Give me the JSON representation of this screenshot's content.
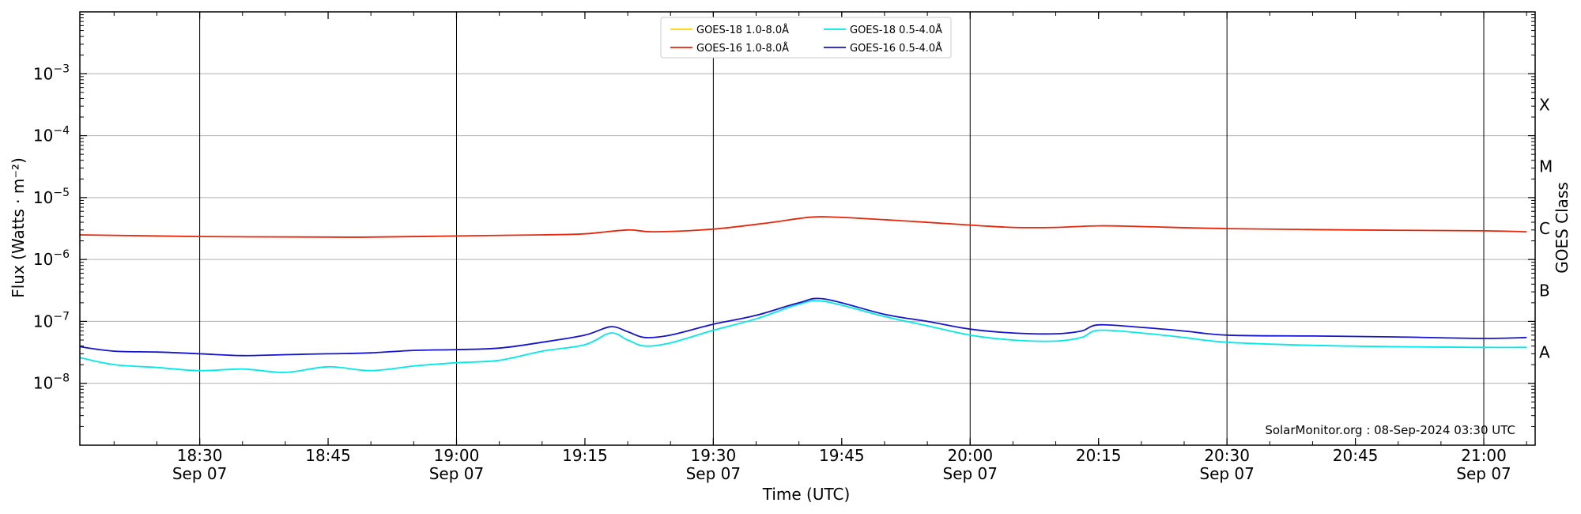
{
  "chart_data": {
    "type": "line",
    "title": "",
    "xlabel": "Time (UTC)",
    "ylabel": "Flux (Watts · m⁻²)",
    "y2label": "GOES Class",
    "yscale": "log",
    "ylim": [
      1e-09,
      0.01
    ],
    "xlim": [
      "18:16",
      "21:06"
    ],
    "grid": "horizontal at decades; vertical at half hours",
    "legend_position": "top-center",
    "x_ticks": [
      {
        "time": "18:30",
        "label": "18:30",
        "date": "Sep 07"
      },
      {
        "time": "18:45",
        "label": "18:45",
        "date": ""
      },
      {
        "time": "19:00",
        "label": "19:00",
        "date": "Sep 07"
      },
      {
        "time": "19:15",
        "label": "19:15",
        "date": ""
      },
      {
        "time": "19:30",
        "label": "19:30",
        "date": "Sep 07"
      },
      {
        "time": "19:45",
        "label": "19:45",
        "date": ""
      },
      {
        "time": "20:00",
        "label": "20:00",
        "date": "Sep 07"
      },
      {
        "time": "20:15",
        "label": "20:15",
        "date": ""
      },
      {
        "time": "20:30",
        "label": "20:30",
        "date": "Sep 07"
      },
      {
        "time": "20:45",
        "label": "20:45",
        "date": ""
      },
      {
        "time": "21:00",
        "label": "21:00",
        "date": "Sep 07"
      }
    ],
    "y_ticks": [
      {
        "value": 1e-08,
        "base": "10",
        "exp": "−8"
      },
      {
        "value": 1e-07,
        "base": "10",
        "exp": "−7"
      },
      {
        "value": 1e-06,
        "base": "10",
        "exp": "−6"
      },
      {
        "value": 1e-05,
        "base": "10",
        "exp": "−5"
      },
      {
        "value": 0.0001,
        "base": "10",
        "exp": "−4"
      },
      {
        "value": 0.001,
        "base": "10",
        "exp": "−3"
      }
    ],
    "goes_classes": [
      {
        "label": "A",
        "value": 3.16e-08
      },
      {
        "label": "B",
        "value": 3.16e-07
      },
      {
        "label": "C",
        "value": 3.16e-06
      },
      {
        "label": "M",
        "value": 3.16e-05
      },
      {
        "label": "X",
        "value": 0.000316
      }
    ],
    "series": [
      {
        "name": "GOES-18 1.0-8.0Å",
        "color": "#ffd700",
        "points": []
      },
      {
        "name": "GOES-16 1.0-8.0Å",
        "color": "#e8260a",
        "points": [
          [
            "18:16",
            2.5e-06
          ],
          [
            "18:30",
            2.35e-06
          ],
          [
            "18:45",
            2.3e-06
          ],
          [
            "18:50",
            2.3e-06
          ],
          [
            "19:00",
            2.4e-06
          ],
          [
            "19:10",
            2.5e-06
          ],
          [
            "19:15",
            2.6e-06
          ],
          [
            "19:20",
            3e-06
          ],
          [
            "19:23",
            2.8e-06
          ],
          [
            "19:30",
            3.1e-06
          ],
          [
            "19:37",
            4e-06
          ],
          [
            "19:40",
            4.6e-06
          ],
          [
            "19:43",
            4.9e-06
          ],
          [
            "19:50",
            4.4e-06
          ],
          [
            "20:00",
            3.6e-06
          ],
          [
            "20:05",
            3.3e-06
          ],
          [
            "20:10",
            3.3e-06
          ],
          [
            "20:15",
            3.5e-06
          ],
          [
            "20:20",
            3.4e-06
          ],
          [
            "20:30",
            3.15e-06
          ],
          [
            "20:45",
            3e-06
          ],
          [
            "21:00",
            2.9e-06
          ],
          [
            "21:05",
            2.8e-06
          ]
        ]
      },
      {
        "name": "GOES-18 0.5-4.0Å",
        "color": "#00eaea",
        "points": [
          [
            "18:16",
            2.6e-08
          ],
          [
            "18:20",
            2e-08
          ],
          [
            "18:25",
            1.8e-08
          ],
          [
            "18:30",
            1.6e-08
          ],
          [
            "18:35",
            1.7e-08
          ],
          [
            "18:40",
            1.5e-08
          ],
          [
            "18:45",
            1.85e-08
          ],
          [
            "18:50",
            1.6e-08
          ],
          [
            "18:55",
            1.9e-08
          ],
          [
            "19:00",
            2.15e-08
          ],
          [
            "19:05",
            2.35e-08
          ],
          [
            "19:10",
            3.3e-08
          ],
          [
            "19:15",
            4.2e-08
          ],
          [
            "19:18",
            6.5e-08
          ],
          [
            "19:20",
            5e-08
          ],
          [
            "19:22",
            4e-08
          ],
          [
            "19:25",
            4.5e-08
          ],
          [
            "19:30",
            7.2e-08
          ],
          [
            "19:35",
            1.1e-07
          ],
          [
            "19:40",
            1.9e-07
          ],
          [
            "19:43",
            2.1e-07
          ],
          [
            "19:50",
            1.2e-07
          ],
          [
            "19:55",
            8.5e-08
          ],
          [
            "20:00",
            6e-08
          ],
          [
            "20:05",
            5e-08
          ],
          [
            "20:10",
            4.8e-08
          ],
          [
            "20:13",
            5.5e-08
          ],
          [
            "20:15",
            7.2e-08
          ],
          [
            "20:20",
            6.5e-08
          ],
          [
            "20:25",
            5.5e-08
          ],
          [
            "20:30",
            4.6e-08
          ],
          [
            "20:40",
            4.1e-08
          ],
          [
            "20:50",
            3.9e-08
          ],
          [
            "21:00",
            3.8e-08
          ],
          [
            "21:05",
            3.8e-08
          ]
        ]
      },
      {
        "name": "GOES-16 0.5-4.0Å",
        "color": "#1414d2",
        "points": [
          [
            "18:16",
            3.9e-08
          ],
          [
            "18:20",
            3.3e-08
          ],
          [
            "18:25",
            3.2e-08
          ],
          [
            "18:30",
            3e-08
          ],
          [
            "18:35",
            2.8e-08
          ],
          [
            "18:40",
            2.9e-08
          ],
          [
            "18:45",
            3e-08
          ],
          [
            "18:50",
            3.1e-08
          ],
          [
            "18:55",
            3.4e-08
          ],
          [
            "19:00",
            3.5e-08
          ],
          [
            "19:05",
            3.7e-08
          ],
          [
            "19:10",
            4.6e-08
          ],
          [
            "19:15",
            6e-08
          ],
          [
            "19:18",
            8.2e-08
          ],
          [
            "19:20",
            6.8e-08
          ],
          [
            "19:22",
            5.5e-08
          ],
          [
            "19:25",
            6e-08
          ],
          [
            "19:30",
            9e-08
          ],
          [
            "19:35",
            1.25e-07
          ],
          [
            "19:40",
            2e-07
          ],
          [
            "19:43",
            2.3e-07
          ],
          [
            "19:50",
            1.3e-07
          ],
          [
            "19:55",
            1e-07
          ],
          [
            "20:00",
            7.5e-08
          ],
          [
            "20:05",
            6.5e-08
          ],
          [
            "20:10",
            6.3e-08
          ],
          [
            "20:13",
            7e-08
          ],
          [
            "20:15",
            8.8e-08
          ],
          [
            "20:20",
            8e-08
          ],
          [
            "20:25",
            7e-08
          ],
          [
            "20:30",
            6e-08
          ],
          [
            "20:40",
            5.8e-08
          ],
          [
            "20:50",
            5.6e-08
          ],
          [
            "21:00",
            5.3e-08
          ],
          [
            "21:05",
            5.5e-08
          ]
        ]
      }
    ],
    "legend_order": [
      0,
      1,
      2,
      3
    ]
  },
  "credit": "SolarMonitor.org : 08-Sep-2024 03:30 UTC"
}
